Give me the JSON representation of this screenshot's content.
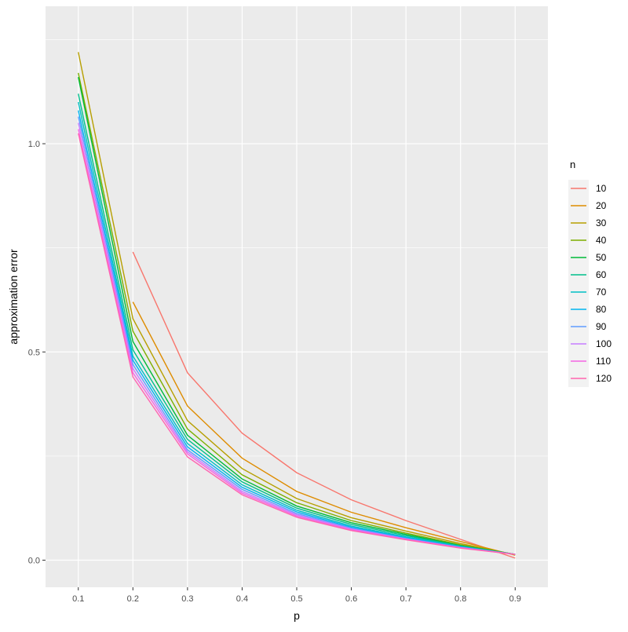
{
  "chart_data": {
    "type": "line",
    "title": "",
    "xlabel": "p",
    "ylabel": "approximation error",
    "x": [
      0.1,
      0.2,
      0.3,
      0.4,
      0.5,
      0.6,
      0.7,
      0.8,
      0.9
    ],
    "x_tick_labels": [
      "0.1",
      "0.2",
      "0.3",
      "0.4",
      "0.5",
      "0.6",
      "0.7",
      "0.8",
      "0.9"
    ],
    "y_tick_values": [
      0.0,
      0.5,
      1.0
    ],
    "y_tick_labels": [
      "0.0",
      "0.5",
      "1.0"
    ],
    "xlim": [
      0.04,
      0.96
    ],
    "ylim": [
      -0.065,
      1.33
    ],
    "grid": true,
    "legend_title": "n",
    "legend_position": "right",
    "series": [
      {
        "name": "10",
        "color": "#F8766D",
        "values": [
          null,
          0.74,
          0.45,
          0.305,
          0.21,
          0.145,
          0.095,
          0.05,
          0.005
        ]
      },
      {
        "name": "20",
        "color": "#DE8C00",
        "values": [
          null,
          0.62,
          0.37,
          0.245,
          0.165,
          0.115,
          0.078,
          0.045,
          0.012
        ]
      },
      {
        "name": "30",
        "color": "#B79F00",
        "values": [
          1.22,
          0.58,
          0.335,
          0.22,
          0.148,
          0.102,
          0.07,
          0.04,
          0.013
        ]
      },
      {
        "name": "40",
        "color": "#7CAE00",
        "values": [
          1.17,
          0.55,
          0.315,
          0.205,
          0.138,
          0.095,
          0.065,
          0.037,
          0.014
        ]
      },
      {
        "name": "50",
        "color": "#00BA38",
        "values": [
          1.16,
          0.525,
          0.3,
          0.195,
          0.13,
          0.09,
          0.062,
          0.035,
          0.014
        ]
      },
      {
        "name": "60",
        "color": "#00C08B",
        "values": [
          1.12,
          0.505,
          0.29,
          0.188,
          0.125,
          0.086,
          0.059,
          0.034,
          0.014
        ]
      },
      {
        "name": "70",
        "color": "#00BFC4",
        "values": [
          1.1,
          0.49,
          0.28,
          0.181,
          0.12,
          0.082,
          0.056,
          0.033,
          0.014
        ]
      },
      {
        "name": "80",
        "color": "#00B4F0",
        "values": [
          1.08,
          0.48,
          0.272,
          0.175,
          0.116,
          0.079,
          0.054,
          0.032,
          0.014
        ]
      },
      {
        "name": "90",
        "color": "#619CFF",
        "values": [
          1.065,
          0.47,
          0.265,
          0.17,
          0.112,
          0.077,
          0.052,
          0.031,
          0.014
        ]
      },
      {
        "name": "100",
        "color": "#C77CFF",
        "values": [
          1.05,
          0.46,
          0.26,
          0.165,
          0.109,
          0.075,
          0.051,
          0.03,
          0.014
        ]
      },
      {
        "name": "110",
        "color": "#F564E3",
        "values": [
          1.035,
          0.45,
          0.255,
          0.161,
          0.106,
          0.073,
          0.05,
          0.03,
          0.014
        ]
      },
      {
        "name": "120",
        "color": "#FF64B0",
        "values": [
          1.025,
          0.44,
          0.248,
          0.157,
          0.103,
          0.071,
          0.049,
          0.029,
          0.014
        ]
      }
    ]
  },
  "colors": {
    "panel_background": "#ebebeb",
    "grid_major": "#ffffff",
    "legend_key_background": "#f2f2f2"
  }
}
